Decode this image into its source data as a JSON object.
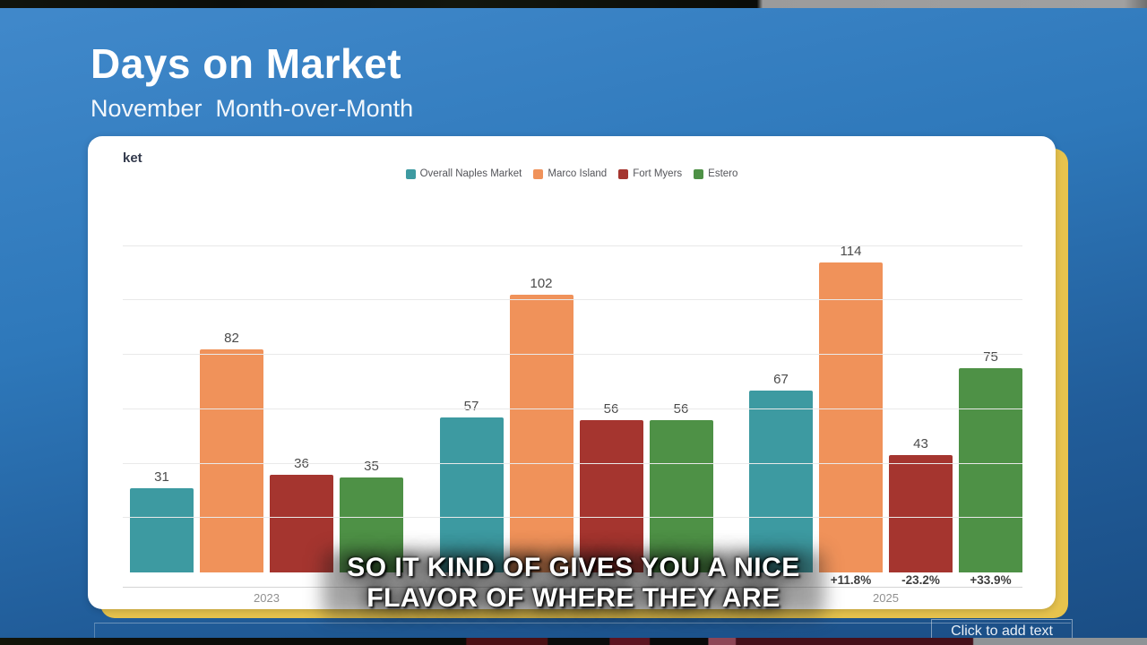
{
  "slide": {
    "title": "Days on Market",
    "subtitle": "November  Month-over-Month"
  },
  "chart": {
    "cropped_title": "ket"
  },
  "chart_data": {
    "type": "bar",
    "title": "Days on Market (cropped, shows 'ket')",
    "categories": [
      "2023",
      "",
      "2025"
    ],
    "series": [
      {
        "name": "Overall Naples Market",
        "color": "#3d9aa1",
        "values": [
          31,
          57,
          67
        ]
      },
      {
        "name": "Marco Island",
        "color": "#f0925a",
        "values": [
          82,
          102,
          114
        ]
      },
      {
        "name": "Fort Myers",
        "color": "#a5352f",
        "values": [
          36,
          56,
          43
        ]
      },
      {
        "name": "Estero",
        "color": "#4e9146",
        "values": [
          35,
          56,
          75
        ]
      }
    ],
    "pct_labels": [
      [
        "",
        "",
        "",
        ""
      ],
      [
        "",
        "",
        "",
        ""
      ],
      [
        "",
        "+11.8%",
        "-23.2%",
        "+33.9%"
      ]
    ],
    "ylim": [
      0,
      140
    ],
    "gridline_step": 20,
    "grid": true,
    "legend_position": "top",
    "xlabel": "",
    "ylabel": ""
  },
  "caption": {
    "line1": "SO IT KIND OF GIVES YOU A NICE",
    "line2": "FLAVOR OF WHERE THEY ARE"
  },
  "placeholder": {
    "text": "Click to add text"
  },
  "colors": {
    "background_top": "#4189cb",
    "background_bottom": "#1a4d84",
    "card": "#ffffff",
    "card_accent_gold": "#e7c34d",
    "gridline": "#e9e9e9",
    "value_label": "#4b4b4b",
    "year_label": "#909090"
  }
}
